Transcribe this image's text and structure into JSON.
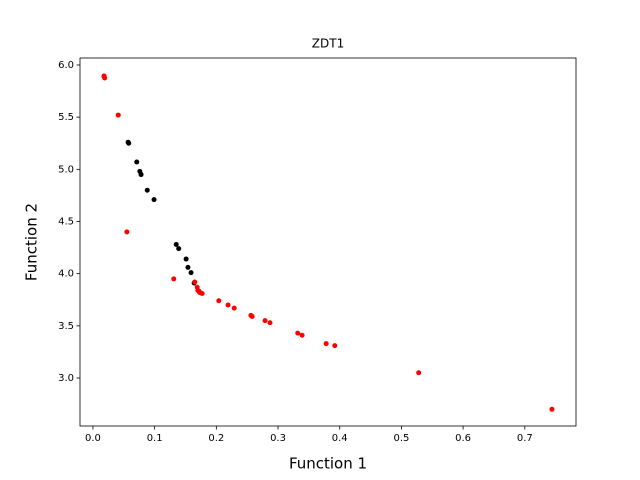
{
  "chart_data": {
    "type": "scatter",
    "title": "ZDT1",
    "x_label": "Function 1",
    "y_label": "Function 2",
    "series": [
      {
        "color": "#000000",
        "x": [
          0.018,
          0.057,
          0.058,
          0.071,
          0.076,
          0.078,
          0.088,
          0.099,
          0.135,
          0.139,
          0.151,
          0.154,
          0.159,
          0.164,
          0.172
        ],
        "values": [
          5.89,
          5.26,
          5.25,
          5.07,
          4.98,
          4.95,
          4.8,
          4.71,
          4.28,
          4.24,
          4.14,
          4.06,
          4.01,
          3.91,
          3.83
        ]
      },
      {
        "color": "#ff0000",
        "x": [
          0.018,
          0.019,
          0.041,
          0.055,
          0.131,
          0.165,
          0.169,
          0.17,
          0.173,
          0.177,
          0.204,
          0.219,
          0.229,
          0.256,
          0.258,
          0.279,
          0.287,
          0.332,
          0.339,
          0.378,
          0.392,
          0.528,
          0.744
        ],
        "values": [
          5.895,
          5.875,
          5.52,
          4.4,
          3.95,
          3.92,
          3.87,
          3.84,
          3.82,
          3.81,
          3.74,
          3.7,
          3.67,
          3.6,
          3.59,
          3.55,
          3.53,
          3.43,
          3.41,
          3.33,
          3.31,
          3.05,
          2.7
        ]
      }
    ],
    "xlim": [
      -0.021,
      0.783
    ],
    "ylim": [
      2.54,
      6.067
    ],
    "xticks": [
      {
        "value": 0,
        "label": "0.0"
      },
      0.1,
      0.2,
      0.3,
      0.4,
      0.5,
      0.6,
      0.7
    ],
    "yticks": [
      {
        "value": 3,
        "label": "3.0"
      },
      3.5,
      {
        "value": 4,
        "label": "4.0"
      },
      4.5,
      {
        "value": 5,
        "label": "5.0"
      },
      5.5,
      {
        "value": 6,
        "label": "6.0"
      }
    ]
  }
}
